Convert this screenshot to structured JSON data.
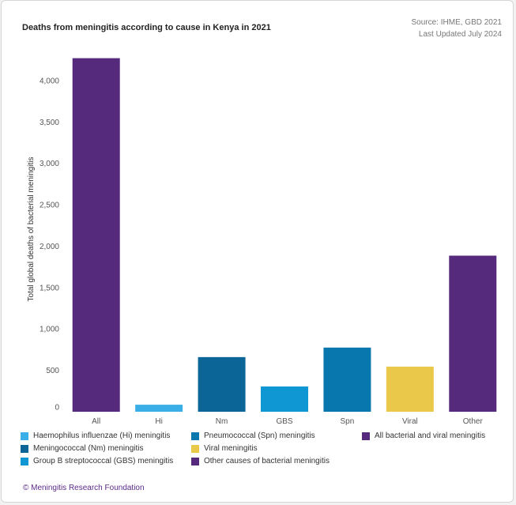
{
  "title": "Deaths from meningitis according to cause in Kenya in 2021",
  "source": {
    "line1": "Source: IHME, GBD 2021",
    "line2": "Last Updated July 2024"
  },
  "footer": "© Meningitis Research Foundation",
  "colors": {
    "purple": "#552a7c",
    "light_blue": "#3aaee6",
    "dark_blue": "#0b6596",
    "mid_blue": "#0f97d4",
    "spn_blue": "#0877ae",
    "yellow": "#e9c84a"
  },
  "legend": [
    {
      "label": "Haemophilus influenzae (Hi) meningitis",
      "color": "#3aaee6"
    },
    {
      "label": "Meningococcal (Nm) meningitis",
      "color": "#0b6596"
    },
    {
      "label": "Group B streptococcal (GBS) meningitis",
      "color": "#0f97d4"
    },
    {
      "label": "Pneumococcal (Spn) meningitis",
      "color": "#0877ae"
    },
    {
      "label": "Viral meningitis",
      "color": "#e9c84a"
    },
    {
      "label": "Other causes of bacterial meningitis",
      "color": "#552a7c"
    },
    {
      "label": "All bacterial and viral meningitis",
      "color": "#552a7c"
    }
  ],
  "chart_data": {
    "type": "bar",
    "title": "Deaths from meningitis according to cause in Kenya in 2021",
    "xlabel": "",
    "ylabel": "Total global deaths of bacterial meningitis",
    "categories": [
      "All",
      "Hi",
      "Nm",
      "GBS",
      "Spn",
      "Viral",
      "Other"
    ],
    "values": [
      4270,
      85,
      660,
      305,
      775,
      545,
      1885
    ],
    "bar_colors": [
      "#552a7c",
      "#3aaee6",
      "#0b6596",
      "#0f97d4",
      "#0877ae",
      "#e9c84a",
      "#552a7c"
    ],
    "ylim": [
      0,
      4400
    ],
    "yticks": [
      0,
      500,
      1000,
      1500,
      2000,
      2500,
      3000,
      3500,
      4000
    ],
    "ytick_labels": [
      "0",
      "500",
      "1,000",
      "1,500",
      "2,000",
      "2,500",
      "3,000",
      "3,500",
      "4,000"
    ],
    "grid": false,
    "legend_position": "bottom"
  }
}
